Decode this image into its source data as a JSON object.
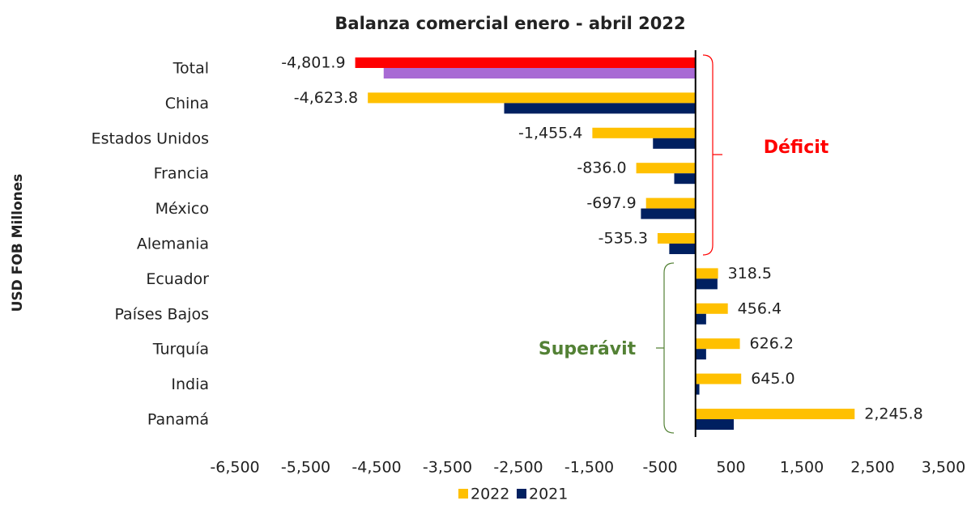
{
  "chart_data": {
    "type": "bar",
    "orientation": "horizontal",
    "title": "Balanza comercial enero - abril 2022",
    "y_label": "USD FOB Millones",
    "categories": [
      "Total",
      "China",
      "Estados Unidos",
      "Francia",
      "México",
      "Alemania",
      "Ecuador",
      "Países Bajos",
      "Turquía",
      "India",
      "Panamá"
    ],
    "series": [
      {
        "name": "2022",
        "color": "#ffc000",
        "colors": [
          "#ff0000",
          "#ffc000",
          "#ffc000",
          "#ffc000",
          "#ffc000",
          "#ffc000",
          "#ffc000",
          "#ffc000",
          "#ffc000",
          "#ffc000",
          "#ffc000"
        ],
        "values": [
          -4801.9,
          -4623.8,
          -1455.4,
          -836.0,
          -697.9,
          -535.3,
          318.5,
          456.4,
          626.2,
          645.0,
          2245.8
        ],
        "value_labels": [
          "-4,801.9",
          "-4,623.8",
          "-1,455.4",
          "-836.0",
          "-697.9",
          "-535.3",
          "318.5",
          "456.4",
          "626.2",
          "645.0",
          "2,245.8"
        ]
      },
      {
        "name": "2021",
        "color": "#002060",
        "colors": [
          "#a86ad4",
          "#002060",
          "#002060",
          "#002060",
          "#002060",
          "#002060",
          "#002060",
          "#002060",
          "#002060",
          "#002060",
          "#002060"
        ],
        "values": [
          -4400,
          -2700,
          -600,
          -300,
          -770,
          -370,
          310,
          150,
          150,
          55,
          540
        ]
      }
    ],
    "xlim": [
      -6500,
      3500
    ],
    "xticks": [
      {
        "value": -6500,
        "label": "-6,500"
      },
      {
        "value": -5500,
        "label": "-5,500"
      },
      {
        "value": -4500,
        "label": "-4,500"
      },
      {
        "value": -3500,
        "label": "-3,500"
      },
      {
        "value": -2500,
        "label": "-2,500"
      },
      {
        "value": -1500,
        "label": "-1,500"
      },
      -500,
      500,
      {
        "value": 1500,
        "label": "1,500"
      },
      {
        "value": 2500,
        "label": "2,500"
      },
      {
        "value": 3500,
        "label": "3,500"
      }
    ],
    "annotations": [
      {
        "text": "Déficit",
        "color": "#ff0000"
      },
      {
        "text": "Superávit",
        "color": "#538135"
      }
    ],
    "legend": "bottom"
  }
}
